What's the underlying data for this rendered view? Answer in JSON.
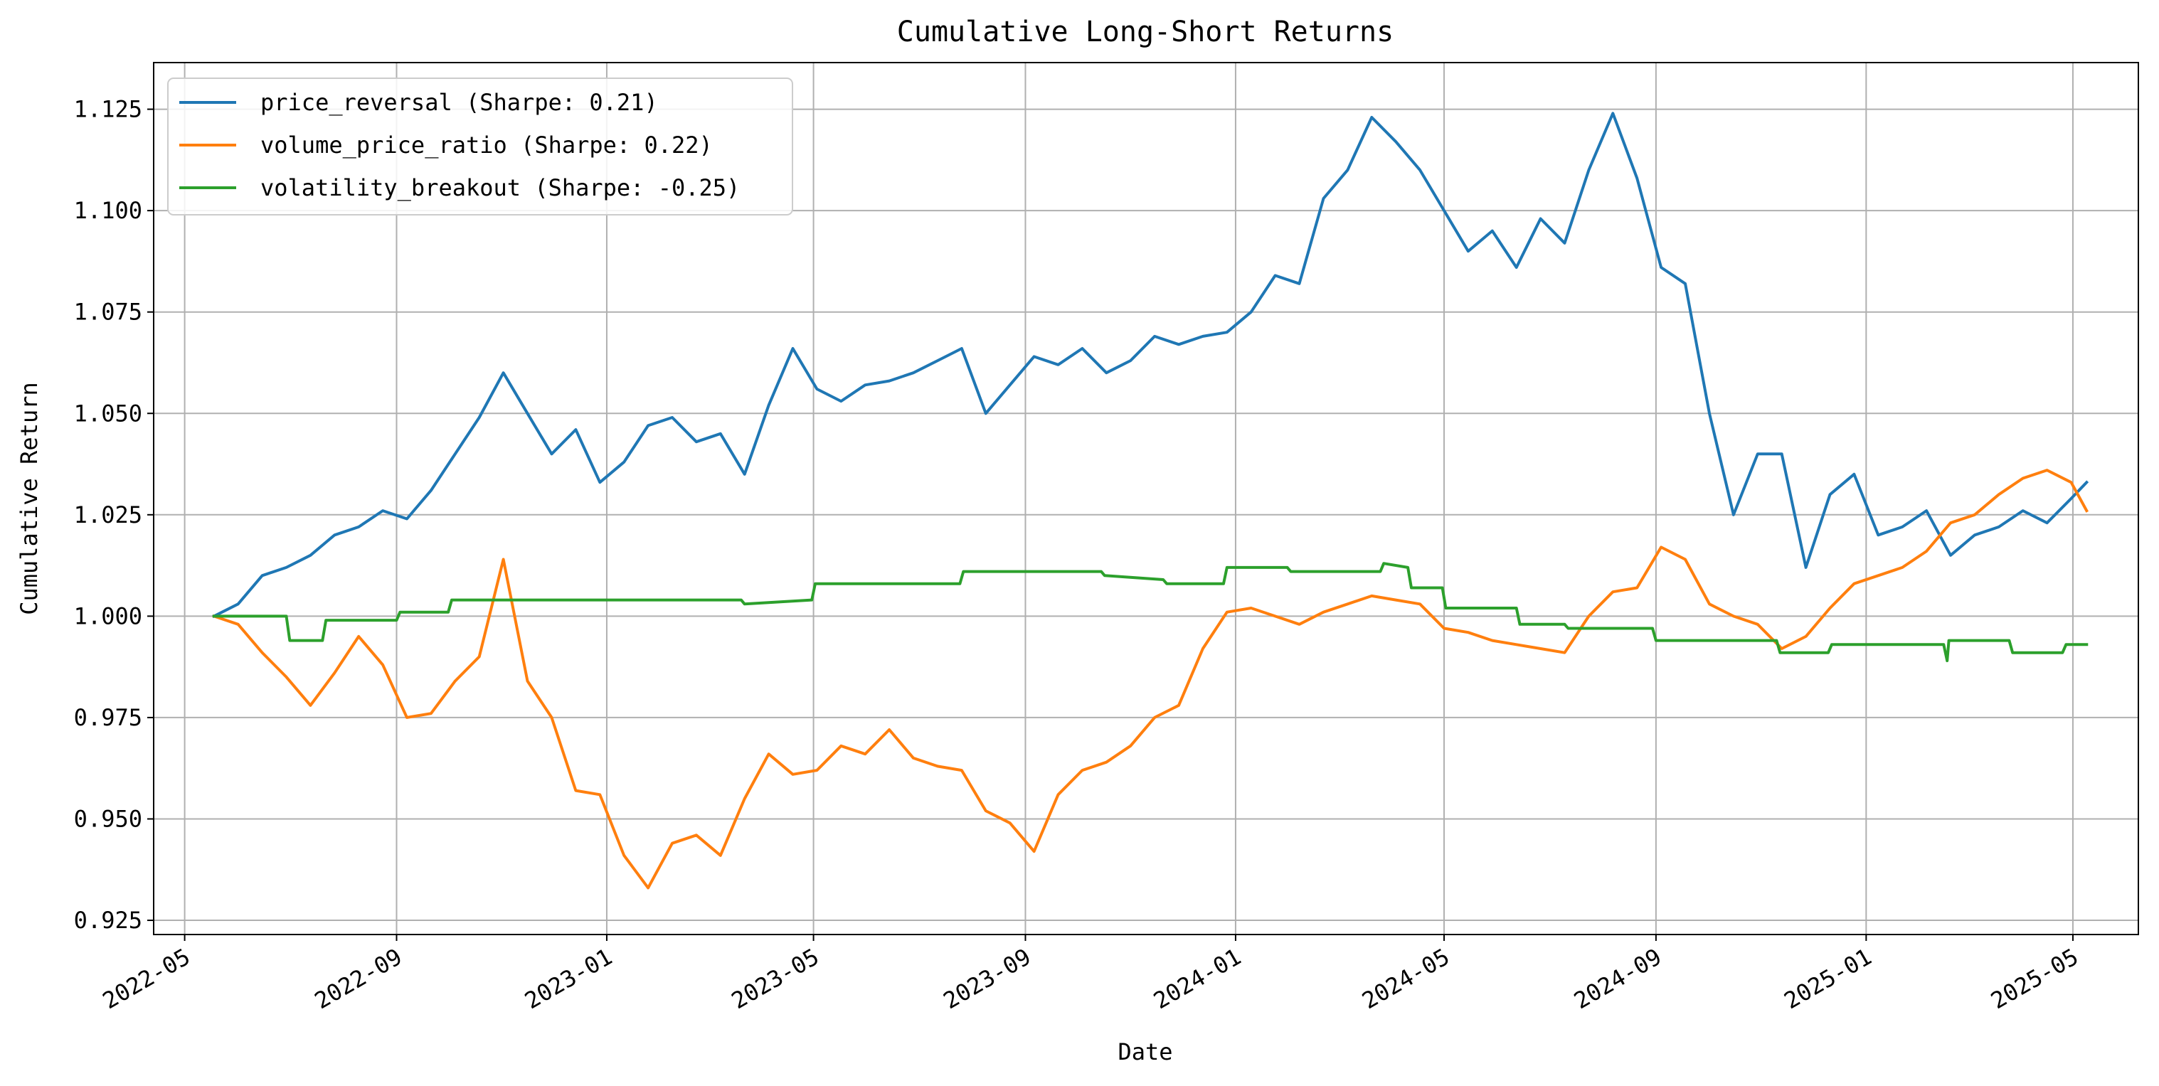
{
  "chart_data": {
    "type": "line",
    "title": "Cumulative Long-Short Returns",
    "xlabel": "Date",
    "ylabel": "Cumulative Return",
    "x_axis_type": "date",
    "xlim": [
      "2022-04-13",
      "2025-06-08"
    ],
    "ylim": [
      0.9215,
      1.1365
    ],
    "x_ticks": [
      "2022-05",
      "2022-09",
      "2023-01",
      "2023-05",
      "2023-09",
      "2024-01",
      "2024-05",
      "2024-09",
      "2025-01",
      "2025-05"
    ],
    "y_ticks": [
      "0.925",
      "0.950",
      "0.975",
      "1.000",
      "1.025",
      "1.050",
      "1.075",
      "1.100",
      "1.125"
    ],
    "grid": true,
    "legend_position": "top-left",
    "series": [
      {
        "name": "price_reversal (Sharpe: 0.21)",
        "color": "#1f77b4",
        "points": [
          [
            "2022-05-18",
            1.0
          ],
          [
            "2022-06-01",
            1.003
          ],
          [
            "2022-06-15",
            1.01
          ],
          [
            "2022-06-29",
            1.012
          ],
          [
            "2022-07-13",
            1.015
          ],
          [
            "2022-07-27",
            1.02
          ],
          [
            "2022-08-10",
            1.022
          ],
          [
            "2022-08-24",
            1.026
          ],
          [
            "2022-09-07",
            1.024
          ],
          [
            "2022-09-21",
            1.031
          ],
          [
            "2022-10-05",
            1.04
          ],
          [
            "2022-10-19",
            1.049
          ],
          [
            "2022-11-02",
            1.06
          ],
          [
            "2022-11-16",
            1.05
          ],
          [
            "2022-11-30",
            1.04
          ],
          [
            "2022-12-14",
            1.046
          ],
          [
            "2022-12-28",
            1.033
          ],
          [
            "2023-01-11",
            1.038
          ],
          [
            "2023-01-25",
            1.047
          ],
          [
            "2023-02-08",
            1.049
          ],
          [
            "2023-02-22",
            1.043
          ],
          [
            "2023-03-08",
            1.045
          ],
          [
            "2023-03-22",
            1.035
          ],
          [
            "2023-04-05",
            1.052
          ],
          [
            "2023-04-19",
            1.066
          ],
          [
            "2023-05-03",
            1.056
          ],
          [
            "2023-05-17",
            1.053
          ],
          [
            "2023-05-31",
            1.057
          ],
          [
            "2023-06-14",
            1.058
          ],
          [
            "2023-06-28",
            1.06
          ],
          [
            "2023-07-12",
            1.063
          ],
          [
            "2023-07-26",
            1.066
          ],
          [
            "2023-08-09",
            1.05
          ],
          [
            "2023-08-23",
            1.057
          ],
          [
            "2023-09-06",
            1.064
          ],
          [
            "2023-09-20",
            1.062
          ],
          [
            "2023-10-04",
            1.066
          ],
          [
            "2023-10-18",
            1.06
          ],
          [
            "2023-11-01",
            1.063
          ],
          [
            "2023-11-15",
            1.069
          ],
          [
            "2023-11-29",
            1.067
          ],
          [
            "2023-12-13",
            1.069
          ],
          [
            "2023-12-27",
            1.07
          ],
          [
            "2024-01-10",
            1.075
          ],
          [
            "2024-01-24",
            1.084
          ],
          [
            "2024-02-07",
            1.082
          ],
          [
            "2024-02-21",
            1.103
          ],
          [
            "2024-03-06",
            1.11
          ],
          [
            "2024-03-20",
            1.123
          ],
          [
            "2024-04-03",
            1.117
          ],
          [
            "2024-04-17",
            1.11
          ],
          [
            "2024-05-01",
            1.1
          ],
          [
            "2024-05-15",
            1.09
          ],
          [
            "2024-05-29",
            1.095
          ],
          [
            "2024-06-12",
            1.086
          ],
          [
            "2024-06-26",
            1.098
          ],
          [
            "2024-07-10",
            1.092
          ],
          [
            "2024-07-24",
            1.11
          ],
          [
            "2024-08-07",
            1.124
          ],
          [
            "2024-08-21",
            1.108
          ],
          [
            "2024-09-04",
            1.086
          ],
          [
            "2024-09-18",
            1.082
          ],
          [
            "2024-10-02",
            1.05
          ],
          [
            "2024-10-16",
            1.025
          ],
          [
            "2024-10-30",
            1.04
          ],
          [
            "2024-11-13",
            1.04
          ],
          [
            "2024-11-27",
            1.012
          ],
          [
            "2024-12-11",
            1.03
          ],
          [
            "2024-12-25",
            1.035
          ],
          [
            "2025-01-08",
            1.02
          ],
          [
            "2025-01-22",
            1.022
          ],
          [
            "2025-02-05",
            1.026
          ],
          [
            "2025-02-19",
            1.015
          ],
          [
            "2025-03-05",
            1.02
          ],
          [
            "2025-03-19",
            1.022
          ],
          [
            "2025-04-02",
            1.026
          ],
          [
            "2025-04-16",
            1.023
          ],
          [
            "2025-04-30",
            1.029
          ],
          [
            "2025-05-09",
            1.033
          ]
        ]
      },
      {
        "name": "volume_price_ratio (Sharpe: 0.22)",
        "color": "#ff7f0e",
        "points": [
          [
            "2022-05-18",
            1.0
          ],
          [
            "2022-06-01",
            0.998
          ],
          [
            "2022-06-15",
            0.991
          ],
          [
            "2022-06-29",
            0.985
          ],
          [
            "2022-07-13",
            0.978
          ],
          [
            "2022-07-27",
            0.986
          ],
          [
            "2022-08-10",
            0.995
          ],
          [
            "2022-08-24",
            0.988
          ],
          [
            "2022-09-07",
            0.975
          ],
          [
            "2022-09-21",
            0.976
          ],
          [
            "2022-10-05",
            0.984
          ],
          [
            "2022-10-19",
            0.99
          ],
          [
            "2022-11-02",
            1.014
          ],
          [
            "2022-11-16",
            0.984
          ],
          [
            "2022-11-30",
            0.975
          ],
          [
            "2022-12-14",
            0.957
          ],
          [
            "2022-12-28",
            0.956
          ],
          [
            "2023-01-11",
            0.941
          ],
          [
            "2023-01-25",
            0.933
          ],
          [
            "2023-02-08",
            0.944
          ],
          [
            "2023-02-22",
            0.946
          ],
          [
            "2023-03-08",
            0.941
          ],
          [
            "2023-03-22",
            0.955
          ],
          [
            "2023-04-05",
            0.966
          ],
          [
            "2023-04-19",
            0.961
          ],
          [
            "2023-05-03",
            0.962
          ],
          [
            "2023-05-17",
            0.968
          ],
          [
            "2023-05-31",
            0.966
          ],
          [
            "2023-06-14",
            0.972
          ],
          [
            "2023-06-28",
            0.965
          ],
          [
            "2023-07-12",
            0.963
          ],
          [
            "2023-07-26",
            0.962
          ],
          [
            "2023-08-09",
            0.952
          ],
          [
            "2023-08-23",
            0.949
          ],
          [
            "2023-09-06",
            0.942
          ],
          [
            "2023-09-20",
            0.956
          ],
          [
            "2023-10-04",
            0.962
          ],
          [
            "2023-10-18",
            0.964
          ],
          [
            "2023-11-01",
            0.968
          ],
          [
            "2023-11-15",
            0.975
          ],
          [
            "2023-11-29",
            0.978
          ],
          [
            "2023-12-13",
            0.992
          ],
          [
            "2023-12-27",
            1.001
          ],
          [
            "2024-01-10",
            1.002
          ],
          [
            "2024-01-24",
            1.0
          ],
          [
            "2024-02-07",
            0.998
          ],
          [
            "2024-02-21",
            1.001
          ],
          [
            "2024-03-06",
            1.003
          ],
          [
            "2024-03-20",
            1.005
          ],
          [
            "2024-04-03",
            1.004
          ],
          [
            "2024-04-17",
            1.003
          ],
          [
            "2024-05-01",
            0.997
          ],
          [
            "2024-05-15",
            0.996
          ],
          [
            "2024-05-29",
            0.994
          ],
          [
            "2024-06-12",
            0.993
          ],
          [
            "2024-06-26",
            0.992
          ],
          [
            "2024-07-10",
            0.991
          ],
          [
            "2024-07-24",
            1.0
          ],
          [
            "2024-08-07",
            1.006
          ],
          [
            "2024-08-21",
            1.007
          ],
          [
            "2024-09-04",
            1.017
          ],
          [
            "2024-09-18",
            1.014
          ],
          [
            "2024-10-02",
            1.003
          ],
          [
            "2024-10-16",
            1.0
          ],
          [
            "2024-10-30",
            0.998
          ],
          [
            "2024-11-13",
            0.992
          ],
          [
            "2024-11-27",
            0.995
          ],
          [
            "2024-12-11",
            1.002
          ],
          [
            "2024-12-25",
            1.008
          ],
          [
            "2025-01-08",
            1.01
          ],
          [
            "2025-01-22",
            1.012
          ],
          [
            "2025-02-05",
            1.016
          ],
          [
            "2025-02-19",
            1.023
          ],
          [
            "2025-03-05",
            1.025
          ],
          [
            "2025-03-19",
            1.03
          ],
          [
            "2025-04-02",
            1.034
          ],
          [
            "2025-04-16",
            1.036
          ],
          [
            "2025-04-30",
            1.033
          ],
          [
            "2025-05-09",
            1.026
          ]
        ]
      },
      {
        "name": "volatility_breakout (Sharpe: -0.25)",
        "color": "#2ca02c",
        "points": [
          [
            "2022-05-18",
            1.0
          ],
          [
            "2022-06-29",
            1.0
          ],
          [
            "2022-07-01",
            0.994
          ],
          [
            "2022-07-20",
            0.994
          ],
          [
            "2022-07-22",
            0.999
          ],
          [
            "2022-09-01",
            0.999
          ],
          [
            "2022-09-03",
            1.001
          ],
          [
            "2022-10-01",
            1.001
          ],
          [
            "2022-10-03",
            1.004
          ],
          [
            "2023-03-20",
            1.004
          ],
          [
            "2023-03-22",
            1.003
          ],
          [
            "2023-04-30",
            1.004
          ],
          [
            "2023-05-02",
            1.008
          ],
          [
            "2023-07-25",
            1.008
          ],
          [
            "2023-07-27",
            1.011
          ],
          [
            "2023-10-15",
            1.011
          ],
          [
            "2023-10-17",
            1.01
          ],
          [
            "2023-11-20",
            1.009
          ],
          [
            "2023-11-22",
            1.008
          ],
          [
            "2023-12-25",
            1.008
          ],
          [
            "2023-12-27",
            1.012
          ],
          [
            "2024-01-31",
            1.012
          ],
          [
            "2024-02-02",
            1.011
          ],
          [
            "2024-03-25",
            1.011
          ],
          [
            "2024-03-27",
            1.013
          ],
          [
            "2024-04-10",
            1.012
          ],
          [
            "2024-04-12",
            1.007
          ],
          [
            "2024-04-30",
            1.007
          ],
          [
            "2024-05-02",
            1.002
          ],
          [
            "2024-06-12",
            1.002
          ],
          [
            "2024-06-14",
            0.998
          ],
          [
            "2024-07-10",
            0.998
          ],
          [
            "2024-07-12",
            0.997
          ],
          [
            "2024-08-30",
            0.997
          ],
          [
            "2024-09-01",
            0.994
          ],
          [
            "2024-11-10",
            0.994
          ],
          [
            "2024-11-12",
            0.991
          ],
          [
            "2024-12-10",
            0.991
          ],
          [
            "2024-12-12",
            0.993
          ],
          [
            "2025-02-15",
            0.993
          ],
          [
            "2025-02-17",
            0.989
          ],
          [
            "2025-02-18",
            0.994
          ],
          [
            "2025-03-25",
            0.994
          ],
          [
            "2025-03-27",
            0.991
          ],
          [
            "2025-04-25",
            0.991
          ],
          [
            "2025-04-27",
            0.993
          ],
          [
            "2025-05-09",
            0.993
          ]
        ]
      }
    ]
  }
}
